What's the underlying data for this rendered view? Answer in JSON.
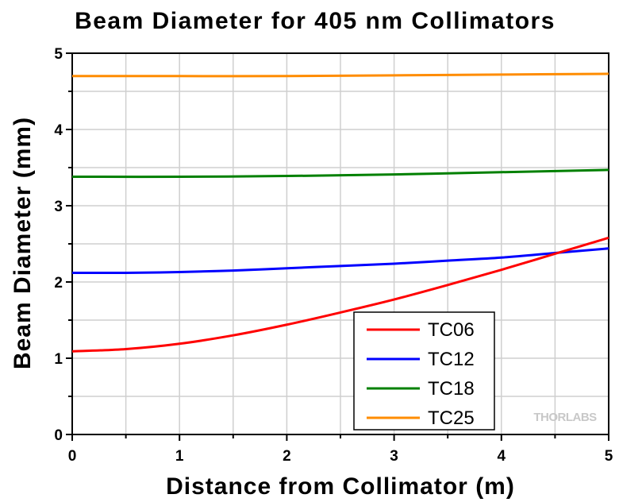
{
  "chart_data": {
    "type": "line",
    "title": "Beam Diameter for 405 nm Collimators",
    "xlabel": "Distance from Collimator (m)",
    "ylabel": "Beam Diameter (mm)",
    "xlim": [
      0,
      5
    ],
    "ylim": [
      0,
      5
    ],
    "xticks": [
      "0",
      "1",
      "2",
      "3",
      "4",
      "5"
    ],
    "yticks": [
      "0",
      "1",
      "2",
      "3",
      "4",
      "5"
    ],
    "grid": true,
    "legend_position": "bottom-right",
    "watermark": "THORLABS",
    "series": [
      {
        "name": "TC06",
        "color": "#ff0000",
        "x": [
          0,
          0.5,
          1,
          1.5,
          2,
          2.5,
          3,
          3.5,
          4,
          4.5,
          5
        ],
        "y": [
          1.09,
          1.12,
          1.19,
          1.3,
          1.44,
          1.6,
          1.77,
          1.96,
          2.16,
          2.37,
          2.58
        ]
      },
      {
        "name": "TC12",
        "color": "#0000ff",
        "x": [
          0,
          0.5,
          1,
          1.5,
          2,
          2.5,
          3,
          3.5,
          4,
          4.5,
          5
        ],
        "y": [
          2.12,
          2.12,
          2.13,
          2.15,
          2.18,
          2.21,
          2.24,
          2.28,
          2.32,
          2.38,
          2.44
        ]
      },
      {
        "name": "TC18",
        "color": "#008000",
        "x": [
          0,
          1,
          2,
          3,
          4,
          5
        ],
        "y": [
          3.38,
          3.38,
          3.39,
          3.41,
          3.44,
          3.47
        ]
      },
      {
        "name": "TC25",
        "color": "#ff8c00",
        "x": [
          0,
          1,
          2,
          3,
          4,
          5
        ],
        "y": [
          4.7,
          4.7,
          4.7,
          4.71,
          4.72,
          4.73
        ]
      }
    ]
  }
}
